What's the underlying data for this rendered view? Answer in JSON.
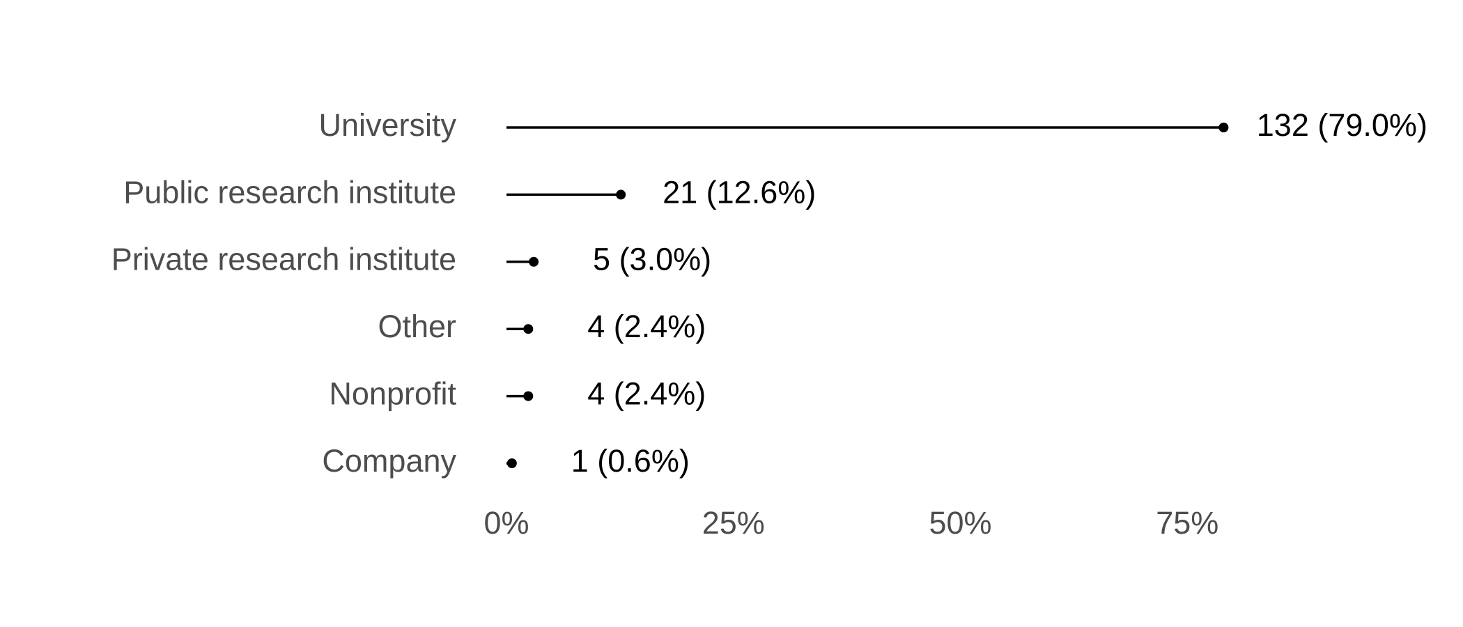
{
  "chart_data": {
    "type": "lollipop",
    "categories": [
      "University",
      "Public research institute",
      "Private research institute",
      "Other",
      "Nonprofit",
      "Company"
    ],
    "values": [
      79.0,
      12.6,
      3.0,
      2.4,
      2.4,
      0.6
    ],
    "value_labels": [
      "132 (79.0%)",
      "21 (12.6%)",
      "5 (3.0%)",
      "4 (2.4%)",
      "4 (2.4%)",
      "1 (0.6%)"
    ],
    "color": "#000000",
    "xlim": [
      0,
      100
    ],
    "xticks": [
      {
        "value": 0,
        "label": "0%"
      },
      {
        "value": 25,
        "label": "25%"
      },
      {
        "value": 50,
        "label": "50%"
      },
      {
        "value": 75,
        "label": "75%"
      }
    ],
    "grid": false
  }
}
